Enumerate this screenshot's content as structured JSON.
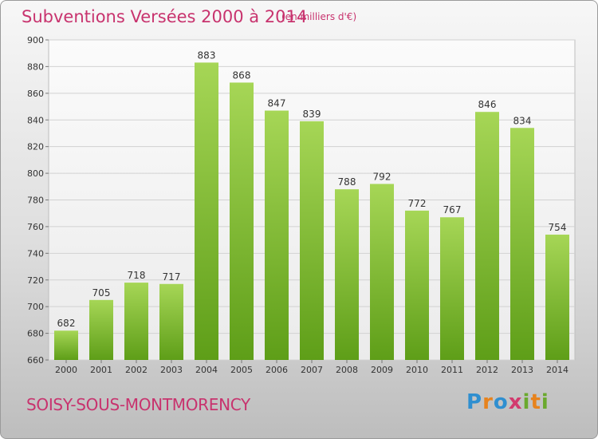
{
  "header": {
    "title": "Subventions Versées 2000 à 2014",
    "subtitle": "(en milliers d'€)"
  },
  "footer": {
    "city": "SOISY-SOUS-MONTMORENCY",
    "logo": "Proxiti"
  },
  "chart_data": {
    "type": "bar",
    "title": "Subventions Versées 2000 à 2014",
    "subtitle": "(en milliers d'€)",
    "categories": [
      "2000",
      "2001",
      "2002",
      "2003",
      "2004",
      "2005",
      "2006",
      "2007",
      "2008",
      "2009",
      "2010",
      "2011",
      "2012",
      "2013",
      "2014"
    ],
    "values": [
      682,
      705,
      718,
      717,
      883,
      868,
      847,
      839,
      788,
      792,
      772,
      767,
      846,
      834,
      754
    ],
    "ylim": [
      660,
      900
    ],
    "yticks": [
      660,
      680,
      700,
      720,
      740,
      760,
      780,
      800,
      820,
      840,
      860,
      880,
      900
    ],
    "grid": true,
    "legend": "none",
    "colors": {
      "bar_light": "#a6d656",
      "bar_dark": "#5e9e18",
      "title": "#c8336e"
    }
  }
}
